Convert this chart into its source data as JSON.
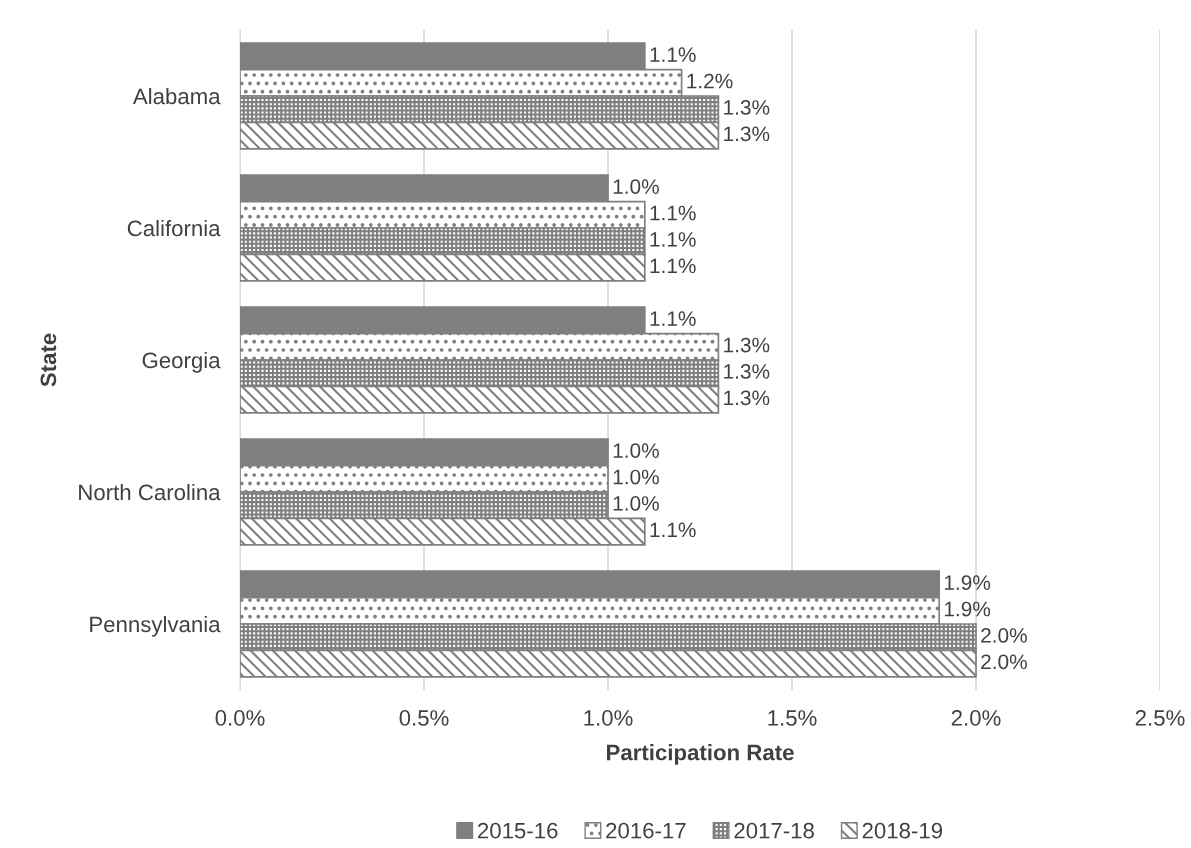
{
  "chart_data": {
    "type": "bar",
    "orientation": "horizontal",
    "xlabel": "Participation Rate",
    "ylabel": "State",
    "categories": [
      "Alabama",
      "California",
      "Georgia",
      "North Carolina",
      "Pennsylvania"
    ],
    "series": [
      {
        "name": "2015-16",
        "color": "#7f7f7f",
        "values": [
          1.1,
          1.0,
          1.1,
          1.0,
          1.9
        ],
        "value_labels": [
          "1.1%",
          "1.0%",
          "1.1%",
          "1.0%",
          "1.9%"
        ]
      },
      {
        "name": "2016-17",
        "color": "#7f7f7f",
        "values": [
          1.2,
          1.1,
          1.3,
          1.0,
          1.9
        ],
        "value_labels": [
          "1.2%",
          "1.1%",
          "1.3%",
          "1.0%",
          "1.9%"
        ]
      },
      {
        "name": "2017-18",
        "color": "#7f7f7f",
        "values": [
          1.3,
          1.1,
          1.3,
          1.0,
          2.0
        ],
        "value_labels": [
          "1.3%",
          "1.1%",
          "1.3%",
          "1.0%",
          "2.0%"
        ]
      },
      {
        "name": "2018-19",
        "color": "#7f7f7f",
        "values": [
          1.3,
          1.1,
          1.3,
          1.1,
          2.0
        ],
        "value_labels": [
          "1.3%",
          "1.1%",
          "1.3%",
          "1.1%",
          "2.0%"
        ]
      }
    ],
    "xlim": [
      0,
      2.5
    ],
    "xticks": [
      {
        "value": 0,
        "label": "0.0%"
      },
      {
        "value": 0.5,
        "label": "0.5%"
      },
      {
        "value": 1.0,
        "label": "1.0%"
      },
      {
        "value": 1.5,
        "label": "1.5%"
      },
      {
        "value": 2.0,
        "label": "2.0%"
      },
      {
        "value": 2.5,
        "label": "2.5%"
      }
    ],
    "grid": "x",
    "legend": "bottom"
  }
}
